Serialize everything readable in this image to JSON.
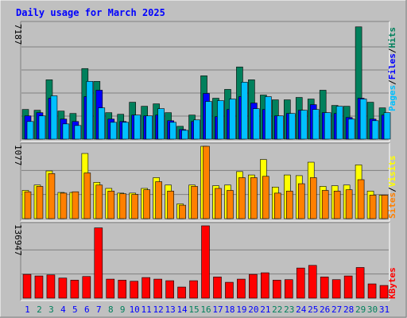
{
  "title": "Daily usage for March 2025",
  "colors": {
    "background": "#c0c0c0",
    "title": "#0000ff",
    "grid": "#808080",
    "hits": "#00805c",
    "files": "#0000ff",
    "pages": "#00c0ff",
    "visits": "#ffff00",
    "sites": "#ff8000",
    "kbytes": "#ff0000",
    "weekday_label": "#0000ff",
    "weekend_label": "#00805c"
  },
  "legend_top": {
    "pages": "Pages",
    "files": "Files",
    "hits": "Hits",
    "sep": "/"
  },
  "legend_middle": {
    "sites": "Sites",
    "visits": "Visits",
    "sep": "/"
  },
  "legend_bottom": {
    "kbytes": "KBytes"
  },
  "chart_data": [
    {
      "type": "bar",
      "title": "Daily usage for March 2025",
      "ymax_label": "7187",
      "ylim": [
        0,
        7187
      ],
      "categories": [
        "1",
        "2",
        "3",
        "4",
        "5",
        "6",
        "7",
        "8",
        "9",
        "10",
        "11",
        "12",
        "13",
        "14",
        "15",
        "16",
        "17",
        "18",
        "19",
        "20",
        "21",
        "22",
        "23",
        "24",
        "25",
        "26",
        "27",
        "28",
        "29",
        "30",
        "31"
      ],
      "weekend": [
        false,
        true,
        true,
        false,
        false,
        false,
        false,
        true,
        true,
        false,
        false,
        false,
        false,
        false,
        true,
        true,
        false,
        false,
        false,
        false,
        false,
        true,
        true,
        false,
        false,
        false,
        false,
        false,
        true,
        true,
        false
      ],
      "series": [
        {
          "name": "Hits",
          "values": [
            1850,
            1800,
            3700,
            1750,
            1600,
            4400,
            3600,
            1650,
            1550,
            2300,
            2050,
            2200,
            1650,
            800,
            1500,
            3950,
            2550,
            3100,
            4500,
            3700,
            2750,
            2450,
            2450,
            2600,
            2500,
            3050,
            2100,
            2050,
            7000,
            2300,
            1950
          ]
        },
        {
          "name": "Files",
          "values": [
            1450,
            1650,
            2550,
            1250,
            1100,
            2650,
            3050,
            1250,
            1100,
            1500,
            1450,
            1500,
            1150,
            600,
            1100,
            2850,
            1400,
            1850,
            2650,
            2250,
            1850,
            1450,
            1600,
            1800,
            2150,
            1650,
            1600,
            1350,
            2550,
            1250,
            1500
          ]
        },
        {
          "name": "Pages",
          "values": [
            1100,
            1450,
            2700,
            950,
            850,
            3600,
            1950,
            1050,
            1050,
            1500,
            1450,
            1900,
            1050,
            550,
            1200,
            2350,
            2400,
            2500,
            3550,
            1900,
            2650,
            1450,
            1600,
            1800,
            1850,
            1650,
            2050,
            1250,
            2500,
            1150,
            1650
          ]
        }
      ]
    },
    {
      "type": "bar",
      "ymax_label": "1077",
      "ylim": [
        0,
        1077
      ],
      "series": [
        {
          "name": "Visits",
          "values": [
            420,
            500,
            710,
            390,
            390,
            970,
            540,
            450,
            380,
            380,
            450,
            610,
            500,
            220,
            500,
            1077,
            490,
            500,
            700,
            650,
            880,
            470,
            650,
            640,
            840,
            480,
            490,
            500,
            800,
            410,
            350
          ]
        },
        {
          "name": "Sites",
          "values": [
            400,
            480,
            670,
            380,
            400,
            680,
            500,
            410,
            370,
            360,
            430,
            550,
            410,
            200,
            480,
            1077,
            450,
            420,
            610,
            610,
            630,
            380,
            410,
            520,
            610,
            420,
            410,
            430,
            580,
            350,
            350
          ]
        }
      ]
    },
    {
      "type": "bar",
      "ymax_label": "136947",
      "ylim": [
        0,
        136947
      ],
      "series": [
        {
          "name": "KBytes",
          "values": [
            45000,
            42000,
            44000,
            38000,
            34000,
            41000,
            133000,
            36000,
            34000,
            32000,
            39000,
            36000,
            33000,
            21000,
            33000,
            136947,
            40000,
            30000,
            36000,
            45000,
            48000,
            34000,
            35000,
            57000,
            62000,
            40000,
            35000,
            42000,
            58000,
            27000,
            24000
          ]
        }
      ]
    }
  ]
}
